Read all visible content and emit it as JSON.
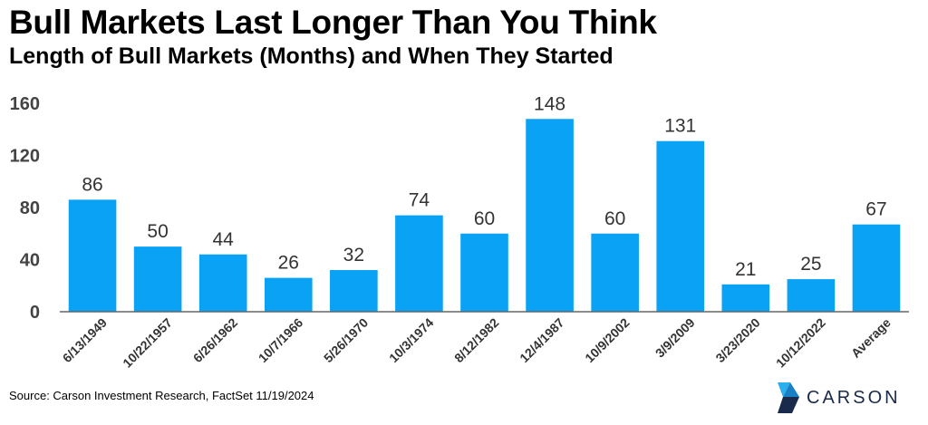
{
  "title": "Bull Markets Last Longer Than You Think",
  "subtitle": "Length of Bull Markets (Months) and When They Started",
  "source": "Source: Carson Investment Research, FactSet 11/19/2024",
  "logo": {
    "text": "CARSON",
    "icon": "carson-logo-icon"
  },
  "colors": {
    "bar": "#0aa2f5",
    "text": "#333333",
    "axis": "#666666",
    "logo_dark": "#1a2a4a",
    "logo_light": "#2ab0ef"
  },
  "chart_data": {
    "type": "bar",
    "categories": [
      "6/13/1949",
      "10/22/1957",
      "6/26/1962",
      "10/7/1966",
      "5/26/1970",
      "10/3/1974",
      "8/12/1982",
      "12/4/1987",
      "10/9/2002",
      "3/9/2009",
      "3/23/2020",
      "10/12/2022",
      "Average"
    ],
    "values": [
      86,
      50,
      44,
      26,
      32,
      74,
      60,
      148,
      60,
      131,
      21,
      25,
      67
    ],
    "data_labels": [
      "86",
      "50",
      "44",
      "26",
      "32",
      "74",
      "60",
      "148",
      "60",
      "131",
      "21",
      "25",
      "67"
    ],
    "yticks": [
      "0",
      "40",
      "80",
      "120",
      "160"
    ],
    "ylim": [
      0,
      160
    ],
    "grid": false,
    "legend": "none"
  }
}
